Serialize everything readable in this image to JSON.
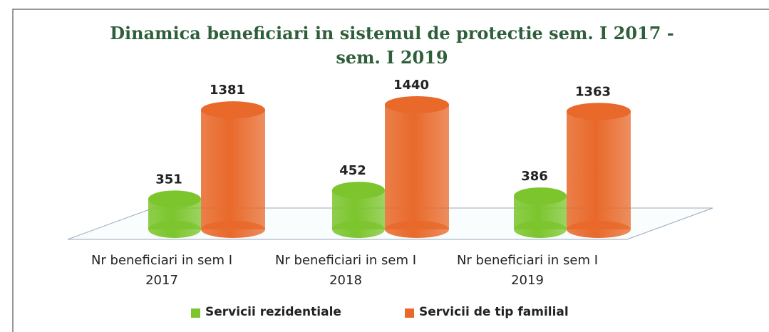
{
  "chart_data": {
    "type": "bar3d",
    "title": "Dinamica beneficiari in sistemul de protectie sem. I 2017 - sem. I 2019",
    "categories": [
      "Nr beneficiari in sem I 2017",
      "Nr beneficiari in sem I 2018",
      "Nr beneficiari in sem I 2019"
    ],
    "series": [
      {
        "name": "Servicii rezidentiale",
        "color": "#7cc52d",
        "values": [
          351,
          452,
          386
        ]
      },
      {
        "name": "Servicii de tip familial",
        "color": "#e8692a",
        "values": [
          1381,
          1440,
          1363
        ]
      }
    ],
    "legend": "bottom"
  }
}
